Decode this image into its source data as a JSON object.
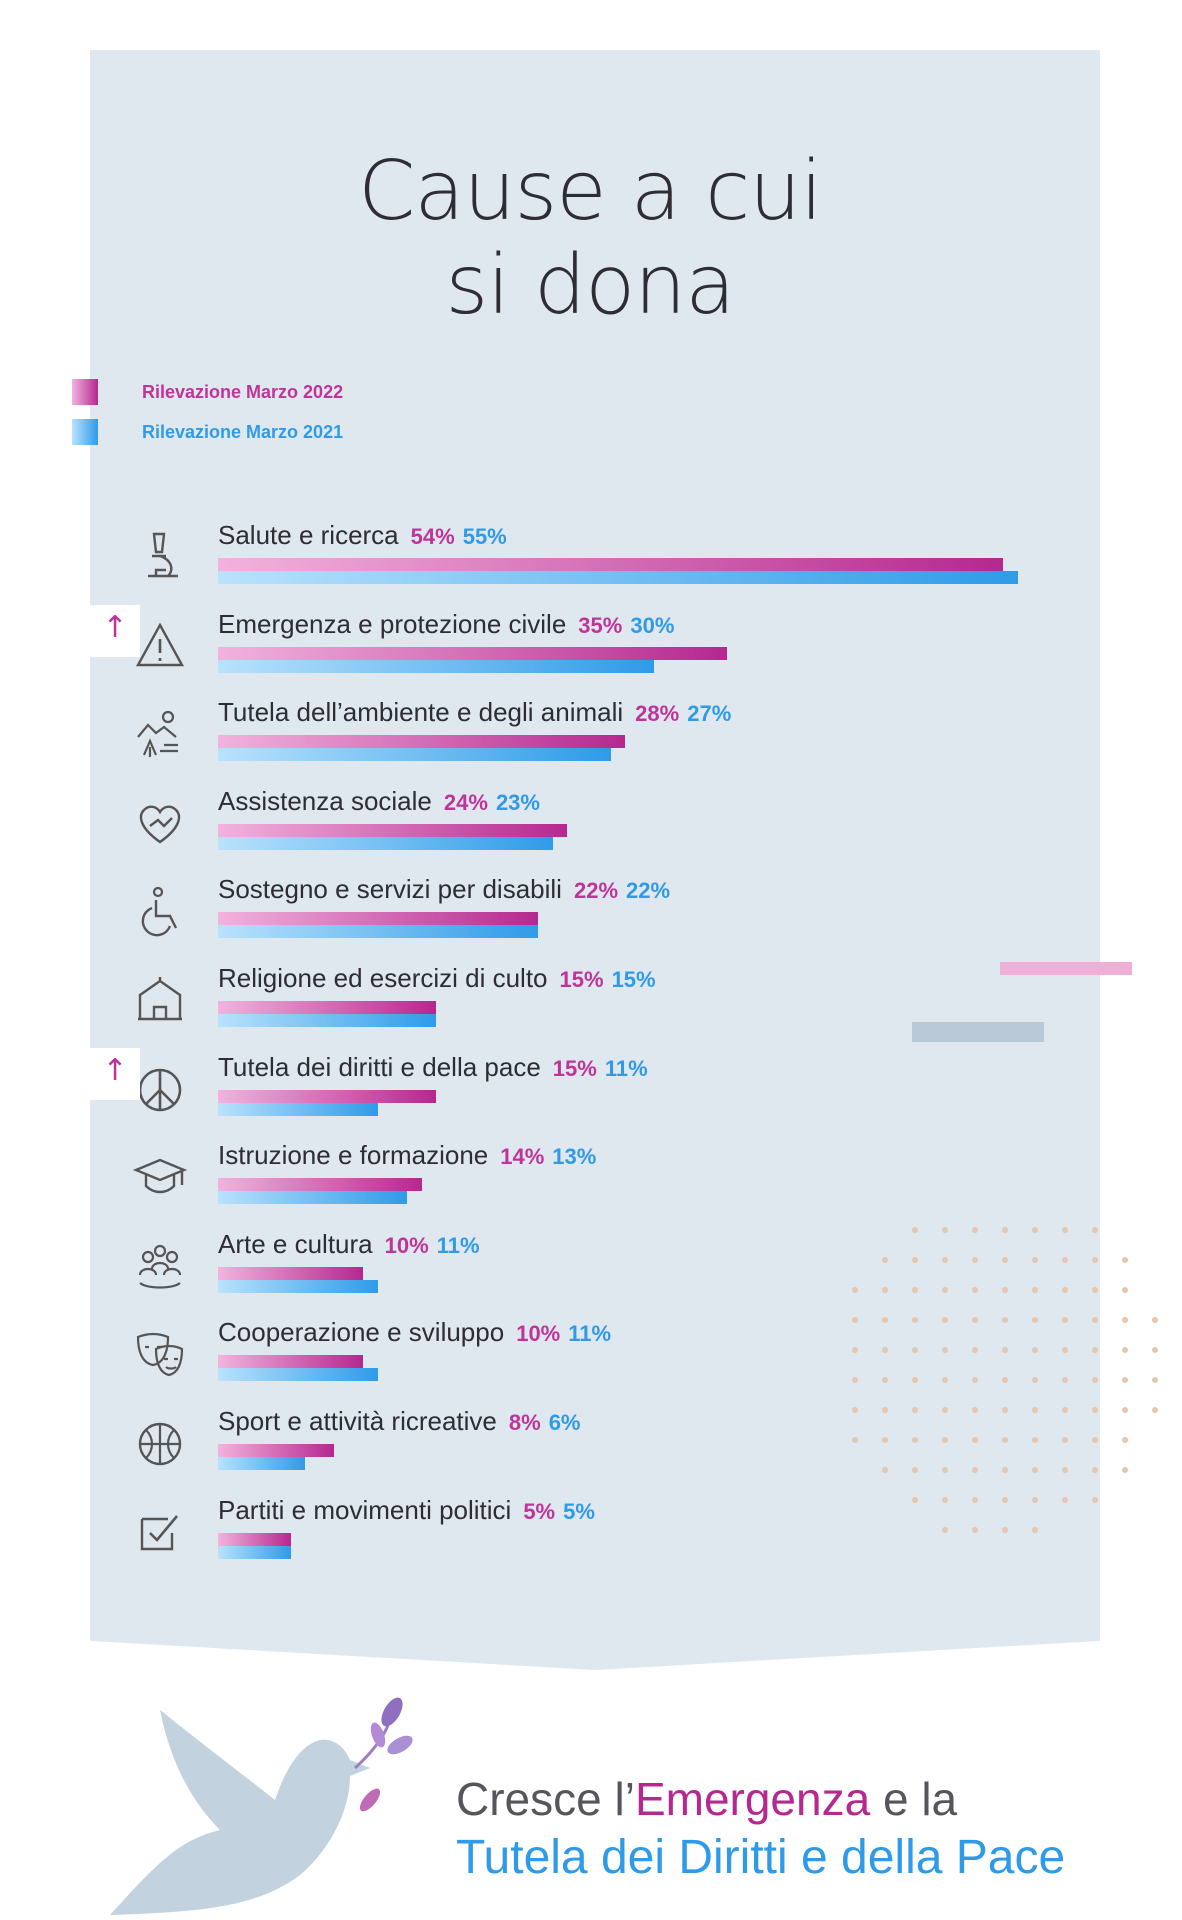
{
  "title_line1": "Cause a cui",
  "title_line2": "si dona",
  "legend": [
    {
      "label": "Rilevazione Marzo 2022",
      "color": "#c0349a"
    },
    {
      "label": "Rilevazione Marzo 2021",
      "color": "#2f9be8"
    }
  ],
  "chart_data": {
    "type": "bar",
    "orientation": "horizontal",
    "title": "Cause a cui si dona",
    "categories": [
      "Salute e ricerca",
      "Emergenza e protezione civile",
      "Tutela dell’ambiente e degli animali",
      "Assistenza sociale",
      "Sostegno e servizi per disabili",
      "Religione ed esercizi di culto",
      "Tutela dei diritti e della pace",
      "Istruzione e formazione",
      "Arte e cultura",
      "Cooperazione e sviluppo",
      "Sport e attività ricreative",
      "Partiti e movimenti politici"
    ],
    "series": [
      {
        "name": "Rilevazione Marzo 2022",
        "values": [
          54,
          35,
          28,
          24,
          22,
          15,
          15,
          14,
          10,
          10,
          8,
          5
        ],
        "labels": [
          "54%",
          "35%",
          "28%",
          "24%",
          "22%",
          "15%",
          "15%",
          "14%",
          "10%",
          "10%",
          "8%",
          "5%"
        ],
        "color": "#c0349a"
      },
      {
        "name": "Rilevazione Marzo 2021",
        "values": [
          55,
          30,
          27,
          23,
          22,
          15,
          11,
          13,
          11,
          11,
          6,
          5
        ],
        "labels": [
          "55%",
          "30%",
          "27%",
          "23%",
          "22%",
          "15%",
          "11%",
          "13%",
          "11%",
          "11%",
          "6%",
          "5%"
        ],
        "color": "#2f9be8"
      }
    ],
    "icons": [
      "microscope-icon",
      "warning-icon",
      "nature-icon",
      "heart-hands-icon",
      "wheelchair-icon",
      "temple-icon",
      "peace-icon",
      "graduation-cap-icon",
      "people-icon",
      "theater-masks-icon",
      "basketball-icon",
      "ballot-check-icon"
    ],
    "increase_marked": [
      "Emergenza e protezione civile",
      "Tutela dei diritti e della pace"
    ],
    "xlim": [
      0,
      55
    ],
    "grid": false,
    "legend_position": "top-left"
  },
  "arrow_glyph": "↑",
  "footer": {
    "line1_a": "Cresce l’",
    "line1_highlight": "Emergenza",
    "line1_b": " e la",
    "line2": "Tutela dei Diritti e della Pace"
  }
}
